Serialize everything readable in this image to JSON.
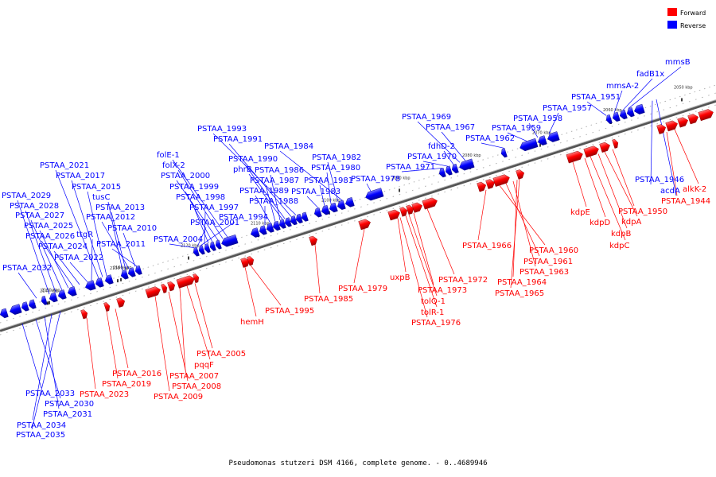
{
  "caption": "Pseudomonas stutzeri DSM 4166, complete genome. - 0..4689946",
  "legend": [
    {
      "label": "Forward",
      "color": "#ff0000"
    },
    {
      "label": "Reverse",
      "color": "#0000ff"
    }
  ],
  "colors": {
    "forward": "#ff0000",
    "reverse": "#0000ff",
    "axis": "#777777"
  },
  "ticks": [
    "2050 kbp",
    "2060 kbp",
    "2070 kbp",
    "2080 kbp",
    "2090 kbp",
    "2100 kbp",
    "2110 kbp",
    "2120 kbp",
    "2130 kbp",
    "2140 kbp",
    "2150 kbp",
    "2160 kbp"
  ],
  "reverse_labels": [
    "mmsB",
    "fadB1x",
    "mmsA-2",
    "PSTAA_1951",
    "PSTAA_1957",
    "PSTAA_1958",
    "PSTAA_1959",
    "PSTAA_1962",
    "PSTAA_1969",
    "PSTAA_1967",
    "fdhD-2",
    "PSTAA_1970",
    "PSTAA_1971",
    "PSTAA_1993",
    "PSTAA_1991",
    "PSTAA_1984",
    "PSTAA_1990",
    "phrB",
    "PSTAA_1982",
    "PSTAA_1986",
    "PSTAA_1980",
    "PSTAA_1987",
    "PSTAA_1981",
    "PSTAA_1978",
    "PSTAA_1989",
    "PSTAA_1983",
    "PSTAA_1988",
    "folE-1",
    "folX-2",
    "PSTAA_2000",
    "PSTAA_1999",
    "PSTAA_1998",
    "PSTAA_1997",
    "PSTAA_1994",
    "PSTAA_2001",
    "PSTAA_2004",
    "PSTAA_2021",
    "PSTAA_2017",
    "PSTAA_2015",
    "tusC",
    "PSTAA_2029",
    "PSTAA_2028",
    "PSTAA_2013",
    "PSTAA_2027",
    "PSTAA_2012",
    "PSTAA_2025",
    "ttgR",
    "PSTAA_2010",
    "PSTAA_2026",
    "PSTAA_2024",
    "PSTAA_2011",
    "PSTAA_2022",
    "PSTAA_2032",
    "PSTAA_1946",
    "acdA",
    "PSTAA_2033",
    "PSTAA_2030",
    "PSTAA_2031",
    "PSTAA_2034",
    "PSTAA_2035"
  ],
  "forward_labels": [
    "alkK-2",
    "PSTAA_1944",
    "PSTAA_1950",
    "kdpA",
    "kdpE",
    "kdpD",
    "kdpB",
    "kdpC",
    "PSTAA_1966",
    "PSTAA_1960",
    "PSTAA_1961",
    "PSTAA_1963",
    "PSTAA_1964",
    "PSTAA_1965",
    "PSTAA_1972",
    "uxpB",
    "PSTAA_1973",
    "tolQ-1",
    "tolR-1",
    "PSTAA_1976",
    "PSTAA_1979",
    "PSTAA_1985",
    "PSTAA_1995",
    "hemH",
    "PSTAA_2005",
    "pqqF",
    "PSTAA_2016",
    "PSTAA_2007",
    "PSTAA_2019",
    "PSTAA_2008",
    "PSTAA_2023",
    "PSTAA_2009"
  ]
}
